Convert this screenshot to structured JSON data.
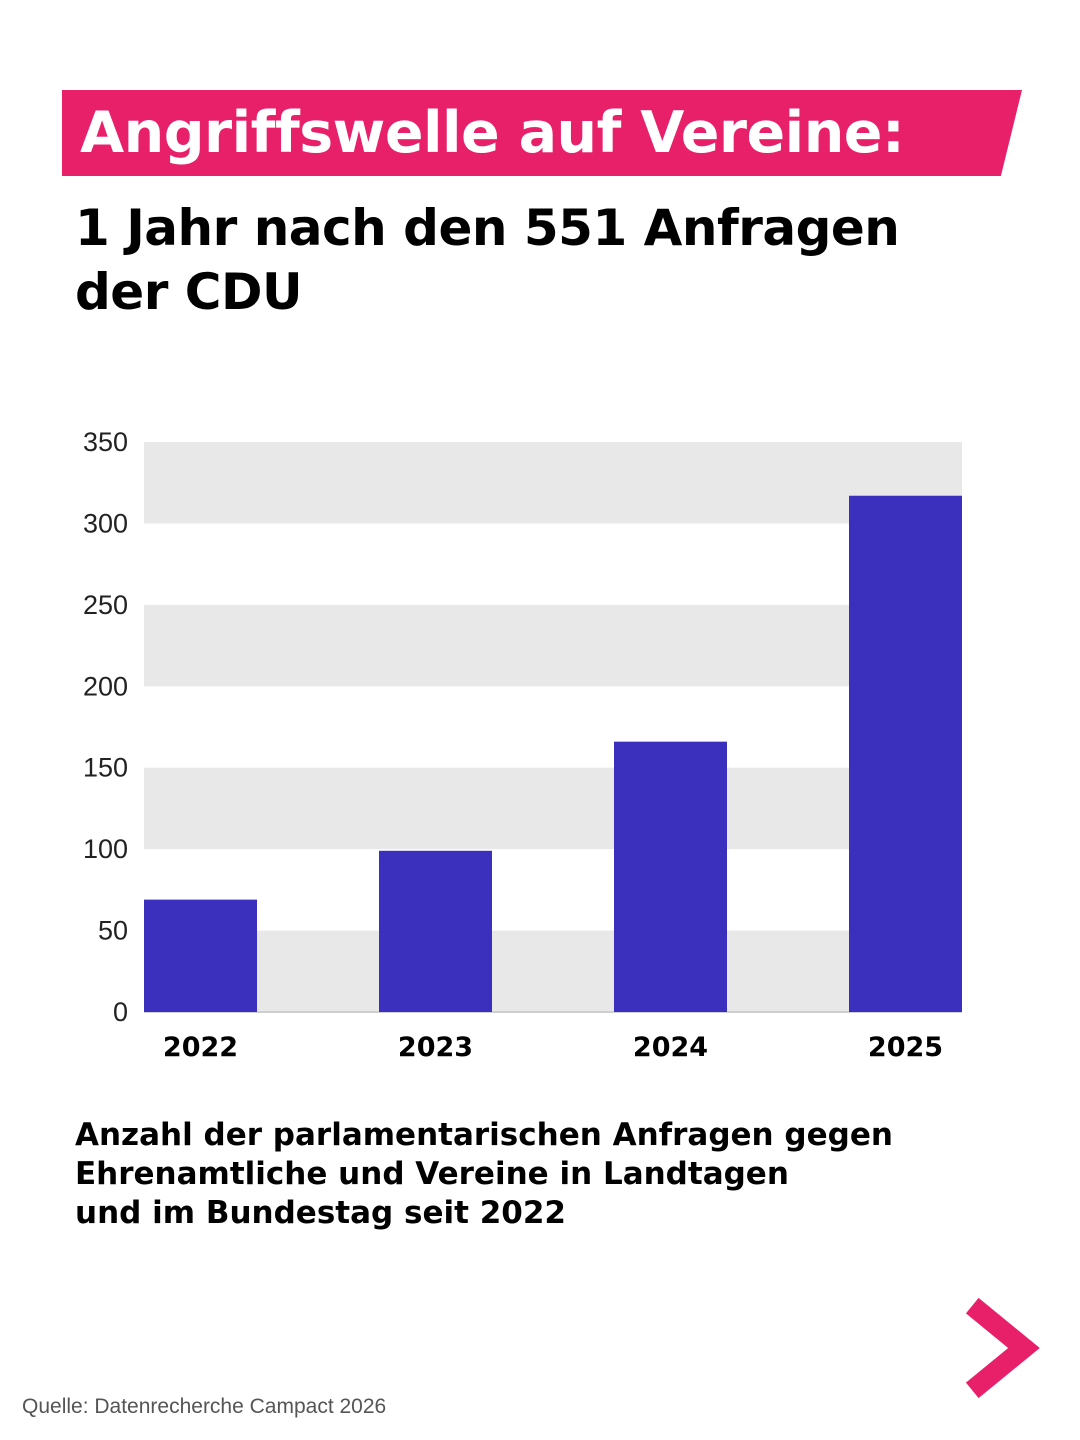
{
  "headline": "Angriffswelle auf Vereine:",
  "subtitle": "1 Jahr nach den 551 Anfragen der CDU",
  "caption": {
    "lines": [
      "Anzahl der parlamentarischen Anfragen gegen",
      "Ehrenamtliche und Vereine in Landtagen",
      "und im Bundestag seit 2022"
    ]
  },
  "source": "Quelle: Datenrecherche Campact 2026",
  "colors": {
    "accent": "#e8206a",
    "bar": "#3b2fbe",
    "band": "#e8e8e8",
    "text": "#000000"
  },
  "icons": {
    "next": "chevron-right-icon"
  },
  "chart_data": {
    "type": "bar",
    "categories": [
      "2022",
      "2023",
      "2024",
      "2025"
    ],
    "values": [
      69,
      99,
      166,
      317
    ],
    "title": "",
    "xlabel": "",
    "ylabel": "",
    "ylim": [
      0,
      350
    ],
    "yticks": [
      0,
      50,
      100,
      150,
      200,
      250,
      300,
      350
    ],
    "ytick_labels": [
      "0",
      "50",
      "100",
      "150",
      "200",
      "250",
      "300",
      "350"
    ],
    "grid": "alternating horizontal bands",
    "legend": "none"
  }
}
